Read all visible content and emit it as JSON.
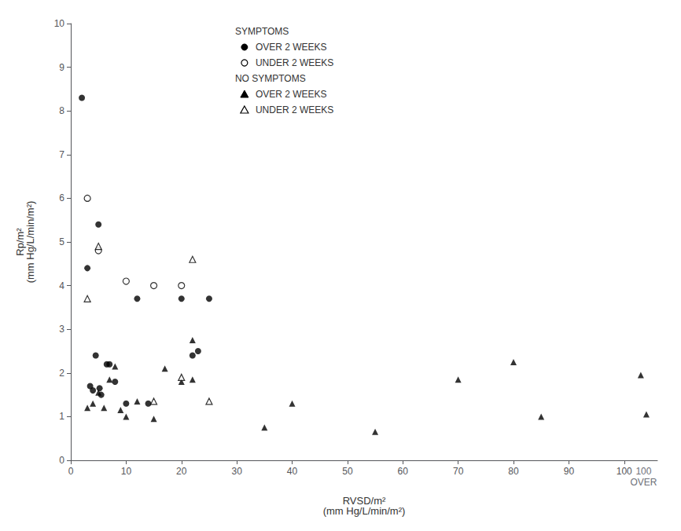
{
  "chart_data": {
    "type": "scatter",
    "xlabel": "RVSD/m²\n(mm Hg/L/min/m²)",
    "ylabel": "Rp/m²\n(mm Hg/L/min/m²)",
    "xlim": [
      0,
      106
    ],
    "ylim": [
      0,
      10
    ],
    "xticks": [
      0,
      10,
      20,
      30,
      40,
      50,
      60,
      70,
      80,
      90,
      100
    ],
    "yticks": [
      0,
      1,
      2,
      3,
      4,
      5,
      6,
      7,
      8,
      9,
      10
    ],
    "grid": false,
    "legend": "top",
    "annotations": [
      {
        "text": "100",
        "x": 103.5
      },
      {
        "text": "OVER",
        "x": 103.5
      }
    ],
    "series": [
      {
        "name": "OVER 2 WEEKS",
        "group": "SYMPTOMS",
        "marker": "circle",
        "color": "#000000",
        "x": [
          2,
          3,
          3.5,
          4,
          4.5,
          5,
          5.2,
          5.5,
          6.5,
          7,
          8,
          10,
          12,
          14,
          20,
          22,
          23,
          25
        ],
        "values": [
          8.3,
          4.4,
          1.7,
          1.6,
          2.4,
          5.4,
          1.65,
          1.5,
          2.2,
          2.2,
          1.8,
          1.3,
          3.7,
          1.3,
          3.7,
          2.4,
          2.5,
          3.7
        ]
      },
      {
        "name": "UNDER 2 WEEKS",
        "group": "SYMPTOMS",
        "marker": "open_circle",
        "color": "#000000",
        "x": [
          3,
          5,
          10,
          15,
          20
        ],
        "values": [
          6.0,
          4.8,
          4.1,
          4.0,
          4.0
        ]
      },
      {
        "name": "OVER 2 WEEKS",
        "group": "NO SYMPTOMS",
        "marker": "triangle",
        "color": "#000000",
        "x": [
          3,
          4,
          5,
          6,
          7,
          8,
          9,
          10,
          12,
          15,
          17,
          20,
          22,
          22,
          35,
          40,
          55,
          70,
          80,
          85,
          103,
          104
        ],
        "values": [
          1.2,
          1.3,
          1.55,
          1.2,
          1.85,
          2.15,
          1.15,
          1.0,
          1.35,
          0.95,
          2.1,
          1.8,
          1.85,
          2.75,
          0.75,
          1.3,
          0.65,
          1.85,
          2.25,
          1.0,
          1.95,
          1.05
        ]
      },
      {
        "name": "UNDER 2 WEEKS",
        "group": "NO SYMPTOMS",
        "marker": "open_triangle",
        "color": "#000000",
        "x": [
          3,
          5,
          15,
          20,
          22,
          25
        ],
        "values": [
          3.7,
          4.9,
          1.35,
          1.9,
          4.6,
          1.35
        ]
      }
    ]
  }
}
